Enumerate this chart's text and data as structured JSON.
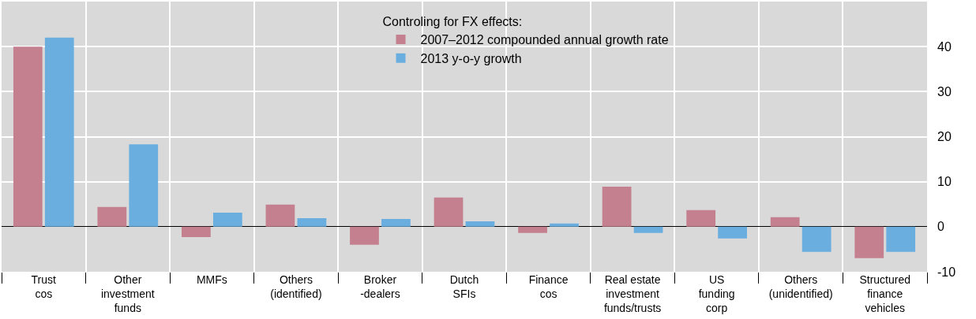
{
  "chart_data": {
    "type": "bar",
    "legend_title": "Controling for FX effects:",
    "categories": [
      "Trust\ncos",
      "Other\ninvestment\nfunds",
      "MMFs",
      "Others\n(identified)",
      "Broker\n-dealers",
      "Dutch\nSFIs",
      "Finance\ncos",
      "Real estate\ninvestment\nfunds/trusts",
      "US\nfunding\ncorp",
      "Others\n(unidentified)",
      "Structured\nfinance\nvehicles"
    ],
    "series": [
      {
        "name": "2007–2012 compounded annual growth rate",
        "color": "#c4808f",
        "values": [
          40,
          4.4,
          -2.3,
          4.9,
          -4,
          6.5,
          -1.4,
          8.9,
          3.7,
          2.1,
          -7
        ]
      },
      {
        "name": "2013 y-o-y growth",
        "color": "#6aaee0",
        "values": [
          42,
          18.3,
          3.1,
          1.9,
          1.7,
          1.2,
          0.7,
          -1.4,
          -2.6,
          -5.6,
          -5.6
        ]
      }
    ],
    "ylim": [
      -10,
      50
    ],
    "yticks": [
      -10,
      0,
      10,
      20,
      30,
      40
    ],
    "grid": true,
    "legend": "top"
  }
}
